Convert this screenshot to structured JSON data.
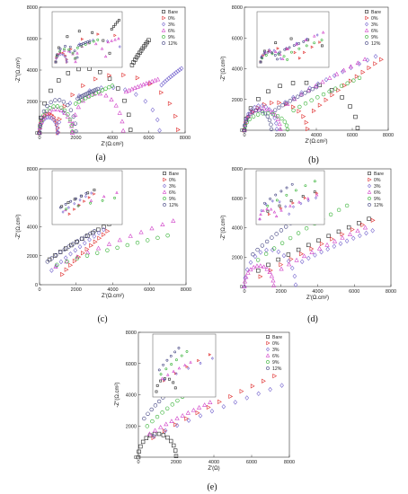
{
  "legend_labels": [
    "Bare",
    "0%",
    "3%",
    "6%",
    "9%",
    "12%"
  ],
  "marker_shapes": [
    "square",
    "tri-right",
    "diamond",
    "triangle",
    "circle",
    "circle"
  ],
  "series_colors": [
    "#222222",
    "#e03030",
    "#7a6ad0",
    "#d040c8",
    "#30b030",
    "#404080"
  ],
  "chart_data": [
    {
      "type": "scatter",
      "caption": "(a)",
      "xlabel": "Z'(Ω.cm²)",
      "ylabel": "-Z''(Ω.cm²)",
      "xlim": [
        0,
        8000
      ],
      "ylim": [
        0,
        8000
      ],
      "xticks": [
        0,
        2000,
        4000,
        6000,
        8000
      ],
      "yticks": [
        0,
        2000,
        4000,
        6000,
        8000
      ],
      "legend": [
        "Bare",
        "0%",
        "3%",
        "6%",
        "9%",
        "12%"
      ],
      "series": [
        {
          "name": "Bare",
          "arcs": [
            [
              0,
              5000,
              4100,
              0.3
            ]
          ],
          "tail": [
            [
              5000,
              4100
            ],
            [
              6000,
              5900
            ]
          ]
        },
        {
          "name": "0%",
          "arcs": [
            [
              0,
              1000,
              1200,
              0.3
            ],
            [
              1000,
              7600,
              3700,
              0.35
            ]
          ],
          "tail": []
        },
        {
          "name": "3%",
          "arcs": [
            [
              0,
              1000,
              1000,
              0.3
            ],
            [
              1000,
              6600,
              2900,
              0.35
            ]
          ],
          "tail": [
            [
              6600,
              2900
            ],
            [
              7800,
              4100
            ]
          ]
        },
        {
          "name": "6%",
          "arcs": [
            [
              0,
              1800,
              1500,
              0.3
            ],
            [
              1800,
              4600,
              2500,
              0.35
            ]
          ],
          "tail": [
            [
              4600,
              2500
            ],
            [
              6500,
              3400
            ]
          ]
        },
        {
          "name": "9%",
          "arcs": [
            [
              0,
              1800,
              1700,
              0.3
            ]
          ],
          "tail": [
            [
              1800,
              1700
            ],
            [
              4000,
              3000
            ]
          ]
        },
        {
          "name": "12%",
          "arcs": [
            [
              0,
              2000,
              2100,
              0.3
            ]
          ],
          "tail": [
            [
              2000,
              2100
            ],
            [
              3200,
              2800
            ]
          ]
        }
      ]
    },
    {
      "type": "scatter",
      "caption": "(b)",
      "xlabel": "Z'(Ω.cm²)",
      "ylabel": "-Z''(Ω.cm²)",
      "xlim": [
        0,
        8000
      ],
      "ylim": [
        0,
        8000
      ],
      "xticks": [
        0,
        2000,
        4000,
        6000,
        8000
      ],
      "yticks": [
        0,
        2000,
        4000,
        6000,
        8000
      ],
      "legend": [
        "Bare",
        "0%",
        "3%",
        "6%",
        "9%",
        "12%"
      ],
      "series": [
        {
          "name": "Bare",
          "arcs": [
            [
              0,
              6300,
              3100,
              0.3
            ]
          ],
          "tail": []
        },
        {
          "name": "0%",
          "arcs": [
            [
              0,
              3500,
              1800,
              0.3
            ]
          ],
          "tail": [
            [
              3500,
              800
            ],
            [
              7600,
              4600
            ]
          ]
        },
        {
          "name": "3%",
          "arcs": [
            [
              0,
              1800,
              1600,
              0.3
            ]
          ],
          "tail": [
            [
              1800,
              1400
            ],
            [
              7300,
              4800
            ]
          ]
        },
        {
          "name": "6%",
          "arcs": [
            [
              0,
              2000,
              1400,
              0.3
            ]
          ],
          "tail": [
            [
              2000,
              1300
            ],
            [
              6700,
              4600
            ]
          ]
        },
        {
          "name": "9%",
          "arcs": [
            [
              0,
              2400,
              1100,
              0.3
            ]
          ],
          "tail": [
            [
              2400,
              1000
            ],
            [
              6400,
              3400
            ]
          ]
        },
        {
          "name": "12%",
          "arcs": [
            [
              0,
              1500,
              1300,
              0.3
            ]
          ],
          "tail": [
            [
              1500,
              1100
            ],
            [
              4000,
              2800
            ]
          ]
        }
      ]
    },
    {
      "type": "scatter",
      "caption": "(c)",
      "xlabel": "Z'(Ω.cm²)",
      "ylabel": "-Z''(Ω.cm²)",
      "xlim": [
        0,
        8000
      ],
      "ylim": [
        0,
        8000
      ],
      "xticks": [
        0,
        2000,
        4000,
        6000,
        8000
      ],
      "yticks": [
        0,
        2000,
        4000,
        6000,
        8000
      ],
      "legend": [
        "Bare",
        "0%",
        "3%",
        "6%",
        "9%",
        "12%"
      ],
      "series": [
        {
          "name": "Bare",
          "arcs": [],
          "tail": [
            [
              250,
              1400
            ],
            [
              3800,
              4200
            ]
          ]
        },
        {
          "name": "0%",
          "arcs": [],
          "tail": [
            [
              1000,
              300
            ],
            [
              3700,
              3700
            ]
          ]
        },
        {
          "name": "3%",
          "arcs": [],
          "tail": [
            [
              400,
              600
            ],
            [
              3500,
              3800
            ]
          ]
        },
        {
          "name": "6%",
          "arcs": [],
          "tail": [
            [
              300,
              800
            ],
            [
              7300,
              4400
            ]
          ]
        },
        {
          "name": "9%",
          "arcs": [],
          "tail": [
            [
              400,
              1100
            ],
            [
              7000,
              3400
            ]
          ]
        },
        {
          "name": "12%",
          "arcs": [],
          "tail": [
            [
              200,
              1300
            ],
            [
              3000,
              3700
            ]
          ]
        }
      ]
    },
    {
      "type": "scatter",
      "caption": "(d)",
      "xlabel": "Z'(Ω.cm²)",
      "ylabel": "-Z''(Ω.cm²)",
      "xlim": [
        0,
        8000
      ],
      "ylim": [
        0,
        8000
      ],
      "xticks": [
        0,
        2000,
        4000,
        6000,
        8000
      ],
      "yticks": [
        0,
        2000,
        4000,
        6000,
        8000
      ],
      "legend": [
        "Bare",
        "0%",
        "3%",
        "6%",
        "9%",
        "12%"
      ],
      "series": [
        {
          "name": "Bare",
          "arcs": [],
          "tail": [
            [
              200,
              600
            ],
            [
              6800,
              4600
            ]
          ]
        },
        {
          "name": "0%",
          "arcs": [],
          "tail": [
            [
              300,
              150
            ],
            [
              7000,
              4500
            ]
          ]
        },
        {
          "name": "3%",
          "arcs": [
            [
              0,
              2800,
              2500,
              0.3
            ]
          ],
          "tail": [
            [
              2800,
              1400
            ],
            [
              7000,
              3800
            ]
          ]
        },
        {
          "name": "6%",
          "arcs": [
            [
              0,
              1600,
              1400,
              0.3
            ]
          ],
          "tail": [
            [
              1600,
              800
            ],
            [
              6600,
              4000
            ]
          ]
        },
        {
          "name": "9%",
          "arcs": [],
          "tail": [
            [
              300,
              1300
            ],
            [
              5600,
              5500
            ]
          ]
        },
        {
          "name": "12%",
          "arcs": [],
          "tail": [
            [
              200,
              1800
            ],
            [
              3300,
              5000
            ]
          ]
        }
      ]
    },
    {
      "type": "scatter",
      "caption": "(e)",
      "xlabel": "Z'(Ω)",
      "ylabel": "-Z''(Ω.cm²)",
      "xlim": [
        0,
        8000
      ],
      "ylim": [
        0,
        8000
      ],
      "xticks": [
        0,
        2000,
        4000,
        6000,
        8000
      ],
      "yticks": [
        0,
        2000,
        4000,
        6000,
        8000
      ],
      "legend": [
        "Bare",
        "0%",
        "3%",
        "6%",
        "9%",
        "12%"
      ],
      "series": [
        {
          "name": "Bare",
          "arcs": [
            [
              0,
              2000,
              1500,
              0.3
            ]
          ],
          "tail": []
        },
        {
          "name": "0%",
          "arcs": [],
          "tail": [
            [
              200,
              700
            ],
            [
              7200,
              5200
            ]
          ]
        },
        {
          "name": "3%",
          "arcs": [],
          "tail": [
            [
              200,
              900
            ],
            [
              7600,
              4600
            ]
          ]
        },
        {
          "name": "6%",
          "arcs": [],
          "tail": [
            [
              300,
              1200
            ],
            [
              3800,
              3500
            ]
          ]
        },
        {
          "name": "9%",
          "arcs": [],
          "tail": [
            [
              200,
              1600
            ],
            [
              3400,
              4800
            ]
          ]
        },
        {
          "name": "12%",
          "arcs": [],
          "tail": [
            [
              100,
              2100
            ],
            [
              2500,
              5200
            ]
          ]
        }
      ]
    }
  ]
}
